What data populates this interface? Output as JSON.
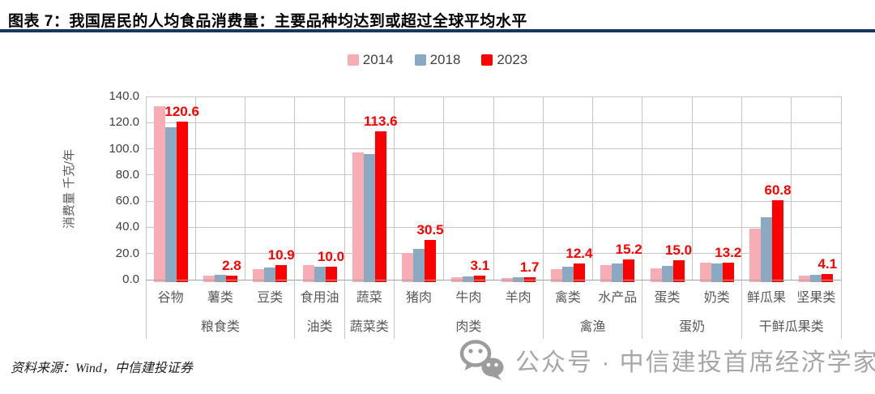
{
  "page": {
    "title": "图表 7：我国居民的人均食品消费量：主要品种均达到或超过全球平均水平",
    "rule_color": "#17375E",
    "source": "资料来源：Wind，中信建投证券",
    "watermark": {
      "icon": "wechat-icon",
      "text": "公众号 · 中信建投首席经济学家",
      "color": "#A6A6A6"
    }
  },
  "chart_data": {
    "type": "bar",
    "title": "",
    "xlabel": "",
    "ylabel": "消费量 千克/年",
    "ylim": [
      0,
      140
    ],
    "ytick_step": 20,
    "ytick_labels": [
      "0.0",
      "20.0",
      "40.0",
      "60.0",
      "80.0",
      "100.0",
      "120.0",
      "140.0"
    ],
    "grid": true,
    "legend_position": "top-center",
    "categories": [
      "谷物",
      "薯类",
      "豆类",
      "食用油",
      "蔬菜",
      "猪肉",
      "牛肉",
      "羊肉",
      "禽类",
      "水产品",
      "蛋类",
      "奶类",
      "鲜瓜果",
      "坚果类"
    ],
    "group_labels": [
      {
        "label": "粮食类",
        "start": 0,
        "end": 3
      },
      {
        "label": "油类",
        "start": 3,
        "end": 4
      },
      {
        "label": "蔬菜类",
        "start": 4,
        "end": 5
      },
      {
        "label": "肉类",
        "start": 5,
        "end": 8
      },
      {
        "label": "禽渔",
        "start": 8,
        "end": 10
      },
      {
        "label": "蛋奶",
        "start": 10,
        "end": 12
      },
      {
        "label": "干鲜瓜果类",
        "start": 12,
        "end": 14
      }
    ],
    "series": [
      {
        "name": "2014",
        "color": "#F7ADB3",
        "values": [
          132.6,
          3.2,
          8.0,
          11.1,
          97.2,
          20.3,
          1.9,
          1.2,
          8.2,
          11.0,
          8.7,
          13.3,
          39.0,
          3.4
        ]
      },
      {
        "name": "2018",
        "color": "#8AA9C2",
        "values": [
          116.6,
          4.0,
          9.2,
          10.2,
          96.2,
          23.3,
          2.7,
          1.9,
          9.8,
          12.4,
          10.3,
          12.4,
          47.5,
          4.0
        ]
      },
      {
        "name": "2023",
        "color": "#FE0000",
        "values": [
          120.6,
          2.8,
          10.9,
          10.0,
          113.6,
          30.5,
          3.1,
          1.7,
          12.4,
          15.2,
          15.0,
          13.2,
          60.8,
          4.1
        ],
        "data_labels": [
          "120.6",
          "2.8",
          "10.9",
          "10.0",
          "113.6",
          "30.5",
          "3.1",
          "1.7",
          "12.4",
          "15.2",
          "15.0",
          "13.2",
          "60.8",
          "4.1"
        ]
      }
    ],
    "data_label_color": "#FF0000"
  }
}
